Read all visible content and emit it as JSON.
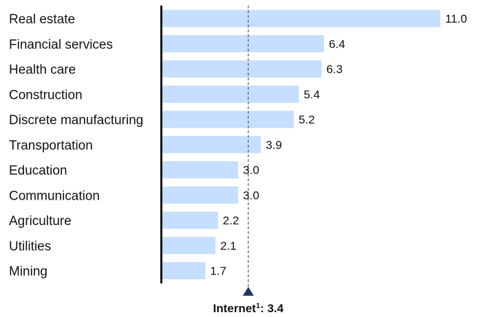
{
  "chart_data": {
    "type": "bar",
    "orientation": "horizontal",
    "categories": [
      "Real estate",
      "Financial services",
      "Health care",
      "Construction",
      "Discrete manufacturing",
      "Transportation",
      "Education",
      "Communication",
      "Agriculture",
      "Utilities",
      "Mining"
    ],
    "values": [
      11.0,
      6.4,
      6.3,
      5.4,
      5.2,
      3.9,
      3.0,
      3.0,
      2.2,
      2.1,
      1.7
    ],
    "value_labels": [
      "11.0",
      "6.4",
      "6.3",
      "5.4",
      "5.2",
      "3.9",
      "3.0",
      "3.0",
      "2.2",
      "2.1",
      "1.7"
    ],
    "xlim": [
      0,
      11.0
    ],
    "grid": false,
    "bar_color": "#c6deff",
    "reference_line": {
      "value": 3.4,
      "label_name": "Internet",
      "label_sup": "1",
      "label_value": ": 3.4",
      "marker_color": "#1f3864"
    }
  }
}
